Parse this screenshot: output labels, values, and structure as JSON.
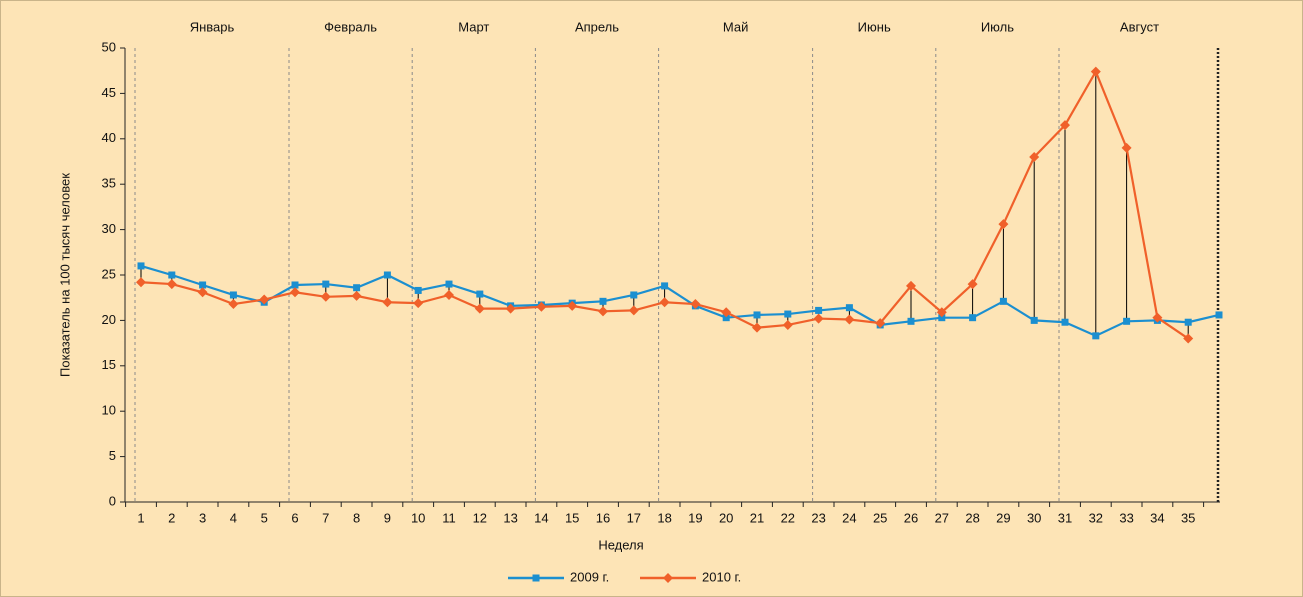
{
  "chart_data": {
    "type": "line",
    "y_label": "Показатель на 100 тысяч человек",
    "x_label": "Неделя",
    "categories": [
      "1",
      "2",
      "3",
      "4",
      "5",
      "6",
      "7",
      "8",
      "9",
      "10",
      "11",
      "12",
      "13",
      "14",
      "15",
      "16",
      "17",
      "18",
      "19",
      "20",
      "21",
      "22",
      "23",
      "24",
      "25",
      "26",
      "27",
      "28",
      "29",
      "30",
      "31",
      "32",
      "33",
      "34",
      "35",
      null
    ],
    "months": [
      {
        "label": "Январь",
        "start": 1
      },
      {
        "label": "Февраль",
        "start": 6
      },
      {
        "label": "Март",
        "start": 10
      },
      {
        "label": "Апрель",
        "start": 14
      },
      {
        "label": "Май",
        "start": 18
      },
      {
        "label": "Июнь",
        "start": 23
      },
      {
        "label": "Июль",
        "start": 27
      },
      {
        "label": "Август",
        "start": 31
      }
    ],
    "series": [
      {
        "name": "2009 г.",
        "color": "#1b8fd0",
        "marker": "square",
        "values": [
          26.0,
          25.0,
          23.9,
          22.8,
          22.0,
          23.9,
          24.0,
          23.6,
          25.0,
          23.3,
          24.0,
          22.9,
          21.6,
          21.7,
          21.9,
          22.1,
          22.8,
          23.8,
          21.6,
          20.3,
          20.6,
          20.7,
          21.1,
          21.4,
          19.5,
          19.9,
          20.3,
          20.3,
          22.1,
          20.0,
          19.8,
          18.3,
          19.9,
          20.0,
          19.8,
          20.6
        ]
      },
      {
        "name": "2010 г.",
        "color": "#f0602a",
        "marker": "diamond",
        "values": [
          24.2,
          24.0,
          23.1,
          21.8,
          22.3,
          23.1,
          22.6,
          22.7,
          22.0,
          21.9,
          22.8,
          21.3,
          21.3,
          21.5,
          21.6,
          21.0,
          21.1,
          22.0,
          21.8,
          20.9,
          19.2,
          19.5,
          20.2,
          20.1,
          19.7,
          23.8,
          20.9,
          24.0,
          30.6,
          38.0,
          41.5,
          47.4,
          39.0,
          20.3,
          18.0,
          null
        ]
      }
    ],
    "ylim": [
      0,
      50
    ],
    "yticks": [
      0,
      5,
      10,
      15,
      20,
      25,
      30,
      35,
      40,
      45,
      50
    ],
    "drop_lines": true
  }
}
